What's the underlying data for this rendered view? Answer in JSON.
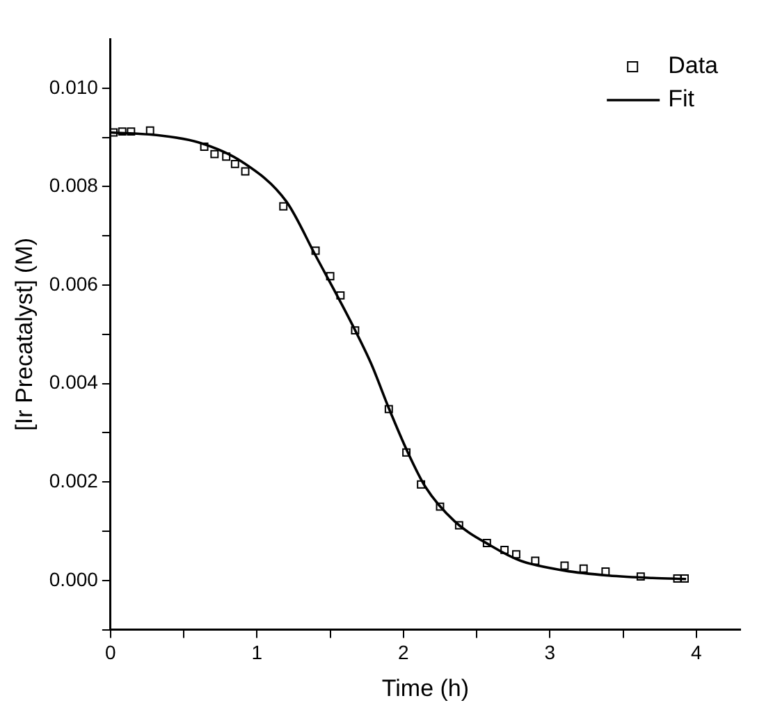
{
  "chart_data": {
    "type": "scatter",
    "xlabel": "Time (h)",
    "ylabel": "[Ir Precatalyst] (M)",
    "xlim": [
      0,
      4.3
    ],
    "ylim": [
      -0.001,
      0.011
    ],
    "xticks": [
      0,
      {
        "value": 0.5,
        "label": null
      },
      1,
      {
        "value": 1.5,
        "label": null
      },
      2,
      {
        "value": 2.5,
        "label": null
      },
      3,
      {
        "value": 3.5,
        "label": null
      },
      4
    ],
    "yticks": [
      {
        "value": -0.001,
        "label": null
      },
      {
        "value": 0,
        "label": "0.000"
      },
      {
        "value": 0.001,
        "label": null
      },
      {
        "value": 0.002,
        "label": "0.002"
      },
      {
        "value": 0.003,
        "label": null
      },
      {
        "value": 0.004,
        "label": "0.004"
      },
      {
        "value": 0.005,
        "label": null
      },
      {
        "value": 0.006,
        "label": "0.006"
      },
      {
        "value": 0.007,
        "label": null
      },
      {
        "value": 0.008,
        "label": "0.008"
      },
      {
        "value": 0.009,
        "label": null
      },
      {
        "value": 0.01,
        "label": "0.010"
      }
    ],
    "grid": false,
    "legend": "top right",
    "series": [
      {
        "name": "Data",
        "type": "scatter",
        "marker": "square",
        "color": "#000000",
        "x": [
          0.02,
          0.08,
          0.14,
          0.27,
          0.64,
          0.71,
          0.79,
          0.85,
          0.92,
          1.18,
          1.4,
          1.5,
          1.57,
          1.67,
          1.9,
          2.02,
          2.12,
          2.25,
          2.38,
          2.57,
          2.69,
          2.77,
          2.9,
          3.1,
          3.23,
          3.38,
          3.62,
          3.87,
          3.92
        ],
        "values": [
          0.0091,
          0.00912,
          0.00912,
          0.00914,
          0.00881,
          0.00866,
          0.00861,
          0.00846,
          0.00831,
          0.0076,
          0.0067,
          0.00618,
          0.00579,
          0.00508,
          0.00348,
          0.0026,
          0.00195,
          0.0015,
          0.00112,
          0.00076,
          0.00062,
          0.00053,
          0.0004,
          0.0003,
          0.00024,
          0.00018,
          8e-05,
          4e-05,
          4e-05
        ]
      },
      {
        "name": "Fit",
        "type": "line",
        "marker": "none",
        "line_style": "solid",
        "color": "#000000",
        "x": [
          0,
          0.3,
          0.6,
          0.9,
          1.2,
          1.4,
          1.65,
          1.78,
          1.9,
          2.03,
          2.15,
          2.35,
          2.6,
          2.8,
          3.1,
          3.4,
          3.7,
          3.93
        ],
        "values": [
          0.0091,
          0.00905,
          0.0089,
          0.0085,
          0.0077,
          0.0066,
          0.0052,
          0.0044,
          0.0035,
          0.0026,
          0.0019,
          0.0012,
          0.0007,
          0.0004,
          0.0002,
          0.0001,
          5e-05,
          3e-05
        ]
      }
    ]
  }
}
